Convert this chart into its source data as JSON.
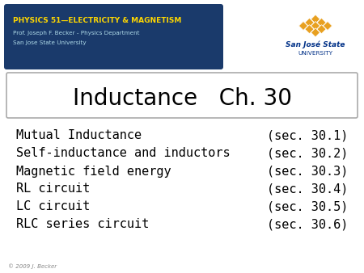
{
  "title": "Inductance   Ch. 30",
  "header_title": "PHYSICS 51—ELECTRICITY & MAGNETISM",
  "header_line1": "Prof. Joseph F. Becker - Physics Department",
  "header_line2": "San Jose State University",
  "university_name_line1": "San José State",
  "university_name_line2": "UNIVERSITY",
  "topics": [
    "Mutual Inductance",
    "Self-inductance and inductors",
    "Magnetic field energy",
    "RL circuit",
    "LC circuit",
    "RLC series circuit"
  ],
  "sections": [
    "(sec. 30.1)",
    "(sec. 30.2)",
    "(sec. 30.3)",
    "(sec. 30.4)",
    "(sec. 30.5)",
    "(sec. 30.6)"
  ],
  "footer": "© 2009 J. Becker",
  "bg_color": "#ffffff",
  "header_bg": "#1a3a6b",
  "header_title_color": "#ffd700",
  "header_text_color": "#add8e6",
  "title_box_bg": "#ffffff",
  "title_box_border": "#aaaaaa",
  "title_color": "#000000",
  "topic_color": "#000000",
  "section_color": "#000000",
  "sjsu_blue": "#003087",
  "sjsu_gold": "#E8A020"
}
